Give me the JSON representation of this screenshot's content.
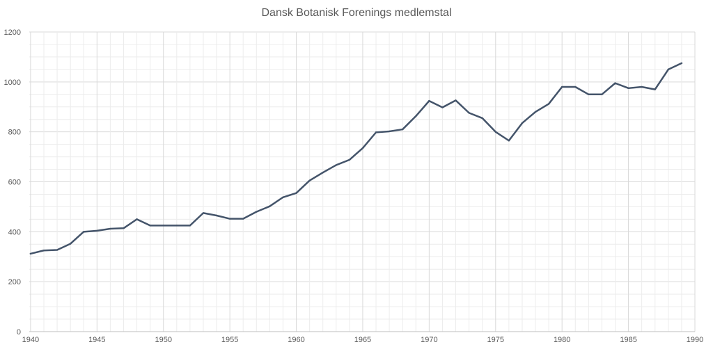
{
  "chart_data": {
    "type": "line",
    "title": "Dansk Botanisk Forenings medlemstal",
    "xlabel": "",
    "ylabel": "",
    "xlim": [
      1939.9,
      1990
    ],
    "ylim": [
      0,
      1200
    ],
    "x_ticks": [
      1940,
      1945,
      1950,
      1955,
      1960,
      1965,
      1970,
      1975,
      1980,
      1985,
      1990
    ],
    "y_ticks": [
      0,
      200,
      400,
      600,
      800,
      1000,
      1200
    ],
    "grid": true,
    "legend": "none",
    "series_color": "#44546a",
    "x": [
      1940,
      1941,
      1942,
      1943,
      1944,
      1945,
      1946,
      1947,
      1948,
      1949,
      1950,
      1951,
      1952,
      1953,
      1954,
      1955,
      1956,
      1957,
      1958,
      1959,
      1960,
      1961,
      1962,
      1963,
      1964,
      1965,
      1966,
      1967,
      1968,
      1969,
      1970,
      1971,
      1972,
      1973,
      1974,
      1975,
      1976,
      1977,
      1978,
      1979,
      1980,
      1981,
      1982,
      1983,
      1984,
      1985,
      1986,
      1987,
      1988,
      1989
    ],
    "series": [
      {
        "values": [
          312,
          325,
          327,
          352,
          400,
          404,
          412,
          414,
          450,
          425,
          425,
          425,
          425,
          475,
          465,
          452,
          452,
          480,
          502,
          538,
          555,
          605,
          637,
          667,
          688,
          735,
          798,
          802,
          810,
          863,
          924,
          898,
          926,
          876,
          855,
          800,
          765,
          835,
          880,
          912,
          980,
          980,
          950,
          950,
          995,
          975,
          980,
          970,
          1050,
          1075
        ]
      }
    ]
  }
}
